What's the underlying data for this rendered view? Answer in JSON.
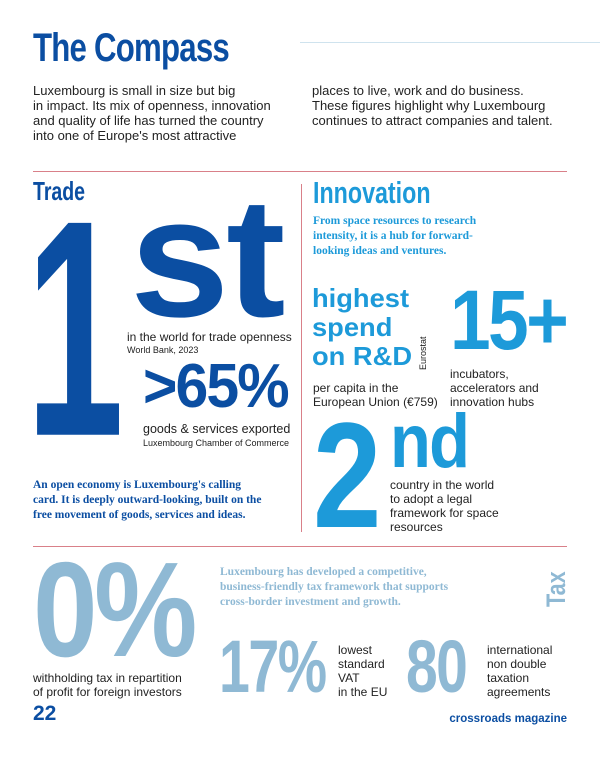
{
  "header": {
    "title": "The Compass",
    "intro_left": [
      "Luxembourg is small in size but big",
      "in impact. Its mix of openness, innovation",
      "and quality of life has turned the country",
      "into one of Europe's most attractive"
    ],
    "intro_right": [
      "places to live, work and do business.",
      "These figures highlight why Luxembourg",
      "continues to attract companies and talent."
    ]
  },
  "trade": {
    "heading": "Trade",
    "big_number": "1",
    "big_suffix": "st",
    "rank_caption": "in the world for trade openness",
    "rank_source": "World Bank, 2023",
    "export_stat": ">65%",
    "export_caption": "goods & services exported",
    "export_source": "Luxembourg Chamber of Commerce",
    "blurb": [
      "An open economy is Luxembourg's calling",
      "card. It is deeply outward-looking, built on the",
      "free movement of goods, services and ideas."
    ]
  },
  "innovation": {
    "heading": "Innovation",
    "blurb": [
      "From space resources to research",
      "intensity, it is a hub for forward-",
      "looking ideas and ventures."
    ],
    "rd_stat": [
      "highest",
      "spend",
      "on R&D"
    ],
    "rd_source": "Eurostat",
    "rd_caption": [
      "per capita in the",
      "European Union (€759)"
    ],
    "hubs_stat": "15+",
    "hubs_caption": [
      "incubators,",
      "accelerators and",
      "innovation hubs"
    ],
    "space_number": "2",
    "space_suffix": "nd",
    "space_caption": [
      "country in the world",
      "to adopt a legal",
      "framework for space",
      "resources"
    ]
  },
  "tax": {
    "heading": "Tax",
    "blurb": [
      "Luxembourg has developed a competitive,",
      "business-friendly tax framework that supports",
      "cross-border investment and growth."
    ],
    "withholding_stat": "0%",
    "withholding_caption": [
      "withholding tax in repartition",
      "of profit for foreign investors"
    ],
    "vat_stat": "17%",
    "vat_caption": [
      "lowest",
      "standard",
      "VAT",
      "in the EU"
    ],
    "treaties_stat": "80",
    "treaties_caption": [
      "international",
      "non double",
      "taxation",
      "agreements"
    ]
  },
  "footer": {
    "page_number": "22",
    "publication": "crossroads magazine"
  },
  "colors": {
    "dark_blue": "#0b4ea2",
    "cyan": "#1d9ad9",
    "light_blue": "#8fb9d4",
    "divider_red": "#d98089"
  }
}
